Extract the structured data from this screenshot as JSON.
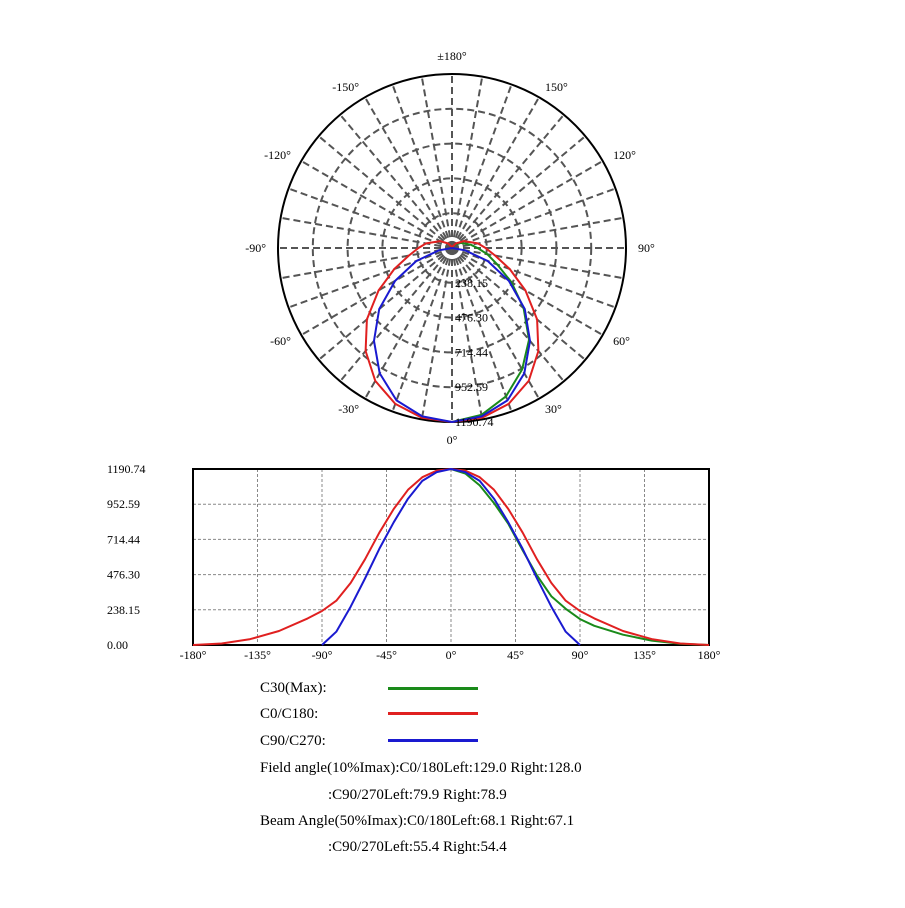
{
  "chart_data": [
    {
      "type": "polar",
      "title": "",
      "angle_labels": [
        "±180°",
        "150°",
        "120°",
        "90°",
        "60°",
        "30°",
        "0°",
        "-30°",
        "-60°",
        "-90°",
        "-120°",
        "-150°"
      ],
      "radial_labels": [
        "238.15",
        "476.30",
        "714.44",
        "952.59",
        "1190.74"
      ],
      "rmax": 1190.74,
      "grid": true,
      "series": [
        {
          "name": "C30(Max)",
          "color": "#1a8a1a",
          "angles": [
            0,
            10,
            20,
            30,
            40,
            50,
            60,
            70,
            80,
            90,
            100,
            120,
            140,
            160,
            180
          ],
          "values": [
            1190.74,
            1160,
            1080,
            960,
            820,
            640,
            470,
            330,
            245,
            175,
            130,
            70,
            30,
            8,
            0
          ]
        },
        {
          "name": "C0/C180",
          "color": "#e02020",
          "angles": [
            -180,
            -160,
            -140,
            -120,
            -100,
            -90,
            -80,
            -70,
            -60,
            -50,
            -40,
            -30,
            -20,
            -10,
            0,
            10,
            20,
            30,
            40,
            50,
            60,
            70,
            80,
            90,
            100,
            120,
            140,
            160,
            180
          ],
          "values": [
            0,
            10,
            40,
            95,
            180,
            230,
            300,
            420,
            580,
            760,
            920,
            1050,
            1135,
            1180,
            1190.74,
            1180,
            1135,
            1050,
            920,
            760,
            580,
            420,
            300,
            230,
            180,
            95,
            40,
            10,
            0
          ]
        },
        {
          "name": "C90/C270",
          "color": "#1a1ad0",
          "angles": [
            -90,
            -80,
            -70,
            -60,
            -50,
            -40,
            -30,
            -20,
            -10,
            0,
            10,
            20,
            30,
            40,
            50,
            60,
            70,
            80,
            90
          ],
          "values": [
            0,
            90,
            260,
            450,
            650,
            830,
            990,
            1110,
            1170,
            1190.74,
            1170,
            1110,
            990,
            830,
            650,
            450,
            260,
            90,
            0
          ]
        }
      ]
    },
    {
      "type": "line",
      "title": "",
      "xlabel": "",
      "ylabel": "",
      "x_ticks": [
        "-180°",
        "-135°",
        "-90°",
        "-45°",
        "0°",
        "45°",
        "90°",
        "135°",
        "180°"
      ],
      "y_ticks": [
        "0.00",
        "238.15",
        "476.30",
        "714.44",
        "952.59",
        "1190.74"
      ],
      "xlim": [
        -180,
        180
      ],
      "ylim": [
        0,
        1190.74
      ],
      "grid": true,
      "series": [
        {
          "name": "C30(Max)",
          "color": "#1a8a1a",
          "x": [
            0,
            10,
            20,
            30,
            40,
            50,
            60,
            70,
            80,
            90,
            100,
            120,
            140,
            160,
            180
          ],
          "y": [
            1190.74,
            1160,
            1080,
            960,
            820,
            640,
            470,
            330,
            245,
            175,
            130,
            70,
            30,
            8,
            0
          ]
        },
        {
          "name": "C0/C180",
          "color": "#e02020",
          "x": [
            -180,
            -160,
            -140,
            -120,
            -100,
            -90,
            -80,
            -70,
            -60,
            -50,
            -40,
            -30,
            -20,
            -10,
            0,
            10,
            20,
            30,
            40,
            50,
            60,
            70,
            80,
            90,
            100,
            120,
            140,
            160,
            180
          ],
          "y": [
            0,
            10,
            40,
            95,
            180,
            230,
            300,
            420,
            580,
            760,
            920,
            1050,
            1135,
            1180,
            1190.74,
            1180,
            1135,
            1050,
            920,
            760,
            580,
            420,
            300,
            230,
            180,
            95,
            40,
            10,
            0
          ]
        },
        {
          "name": "C90/C270",
          "color": "#1a1ad0",
          "x": [
            -90,
            -80,
            -70,
            -60,
            -50,
            -40,
            -30,
            -20,
            -10,
            0,
            10,
            20,
            30,
            40,
            50,
            60,
            70,
            80,
            90
          ],
          "y": [
            0,
            90,
            260,
            450,
            650,
            830,
            990,
            1110,
            1170,
            1190.74,
            1170,
            1110,
            990,
            830,
            650,
            450,
            260,
            90,
            0
          ]
        }
      ]
    }
  ],
  "legend": [
    {
      "label": "C30(Max):",
      "color": "#1a8a1a"
    },
    {
      "label": "C0/C180:",
      "color": "#e02020"
    },
    {
      "label": "C90/C270:",
      "color": "#1a1ad0"
    }
  ],
  "info": {
    "field_line1": "Field angle(10%Imax):C0/180Left:129.0 Right:128.0",
    "field_line2": ":C90/270Left:79.9 Right:78.9",
    "beam_line1": "Beam Angle(50%Imax):C0/180Left:68.1 Right:67.1",
    "beam_line2": ":C90/270Left:55.4 Right:54.4"
  }
}
